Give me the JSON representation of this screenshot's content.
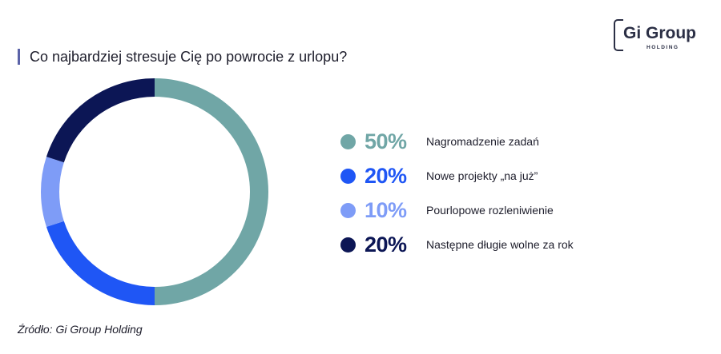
{
  "title": "Co najbardziej stresuje Cię po powrocie z urlopu?",
  "logo": {
    "main": "Gi Group",
    "sub": "HOLDING"
  },
  "source": "Źródło: Gi Group Holding",
  "chart_data": {
    "type": "pie",
    "donut": true,
    "title": "Co najbardziej stresuje Cię po powrocie z urlopu?",
    "categories": [
      "Nagromadzenie zadań",
      "Nowe projekty „na już”",
      "Pourlopowe rozleniwienie",
      "Następne długie wolne za rok"
    ],
    "values": [
      50,
      20,
      10,
      20
    ],
    "value_labels": [
      "50%",
      "20%",
      "10%",
      "20%"
    ],
    "colors": [
      "#70a6a6",
      "#1f56f5",
      "#7e9cf7",
      "#0c1655"
    ],
    "legend": "right"
  }
}
